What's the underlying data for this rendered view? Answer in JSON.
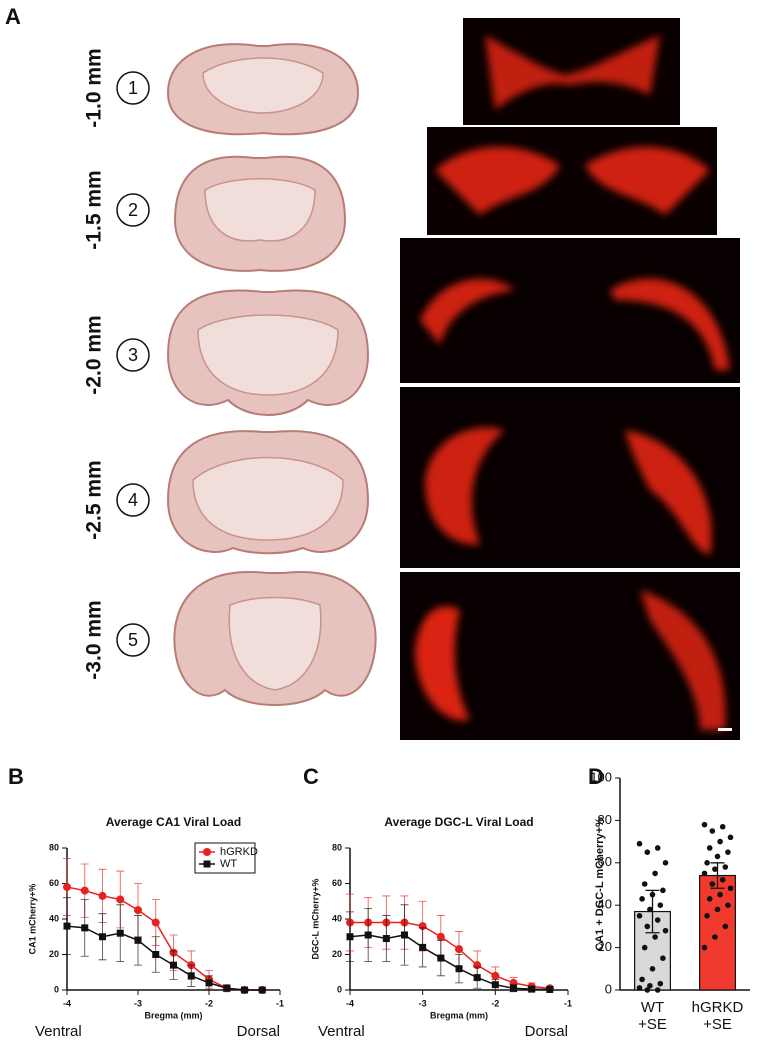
{
  "panel_labels": [
    "A",
    "B",
    "C",
    "D"
  ],
  "sections": [
    {
      "number": "1",
      "depth": "-1.0 mm"
    },
    {
      "number": "2",
      "depth": "-1.5 mm"
    },
    {
      "number": "3",
      "depth": "-2.0 mm"
    },
    {
      "number": "4",
      "depth": "-2.5 mm"
    },
    {
      "number": "5",
      "depth": "-3.0 mm"
    }
  ],
  "chart_data": [
    {
      "type": "line",
      "title": "Average CA1 Viral Load",
      "x_label": "Bregma (mm)",
      "y_label": "CA1 mCherry+%",
      "annotations": [
        "Ventral",
        "Dorsal"
      ],
      "x": [
        -4,
        -3.75,
        -3.5,
        -3.25,
        -3,
        -2.75,
        -2.5,
        -2.25,
        -2,
        -1.75,
        -1.5,
        -1.25
      ],
      "xlim": [
        -4,
        -1
      ],
      "xticks": [
        -4,
        -3,
        -2,
        -1
      ],
      "ylim": [
        0,
        80
      ],
      "yticks": [
        0,
        20,
        40,
        60,
        80
      ],
      "legend": true,
      "legend_position": "upper right",
      "series": [
        {
          "name": "hGRKD",
          "color": "#e8231f",
          "marker": "circle",
          "values": [
            58,
            56,
            53,
            51,
            45,
            38,
            21,
            14,
            6,
            1,
            0,
            0
          ],
          "errors": [
            16,
            15,
            15,
            16,
            15,
            13,
            10,
            8,
            5,
            2,
            1,
            0.5
          ]
        },
        {
          "name": "WT",
          "color": "#111111",
          "marker": "square",
          "values": [
            36,
            35,
            30,
            32,
            28,
            20,
            14,
            8,
            4,
            1,
            0,
            0
          ],
          "errors": [
            16,
            16,
            13,
            16,
            14,
            10,
            8,
            6,
            4,
            1,
            0.5,
            0.3
          ]
        }
      ]
    },
    {
      "type": "line",
      "title": "Average DGC-L Viral Load",
      "x_label": "Bregma (mm)",
      "y_label": "DGC-L mCherry+%",
      "annotations": [
        "Ventral",
        "Dorsal"
      ],
      "x": [
        -4,
        -3.75,
        -3.5,
        -3.25,
        -3,
        -2.75,
        -2.5,
        -2.25,
        -2,
        -1.75,
        -1.5,
        -1.25
      ],
      "xlim": [
        -4,
        -1
      ],
      "xticks": [
        -4,
        -3,
        -2,
        -1
      ],
      "ylim": [
        0,
        80
      ],
      "yticks": [
        0,
        20,
        40,
        60,
        80
      ],
      "legend": false,
      "series": [
        {
          "name": "hGRKD",
          "color": "#e8231f",
          "marker": "circle",
          "values": [
            38,
            38,
            38,
            38,
            36,
            30,
            23,
            14,
            8,
            4,
            2,
            1
          ],
          "errors": [
            16,
            14,
            15,
            15,
            14,
            12,
            10,
            8,
            5,
            3,
            2,
            1
          ]
        },
        {
          "name": "WT",
          "color": "#111111",
          "marker": "square",
          "values": [
            30,
            31,
            29,
            31,
            24,
            18,
            12,
            7,
            3,
            1,
            0.5,
            0.3
          ],
          "errors": [
            14,
            15,
            13,
            17,
            11,
            10,
            8,
            6,
            3,
            2,
            1,
            0.5
          ]
        }
      ]
    },
    {
      "type": "bar",
      "y_label": "CA1 + DGC-L mCherry+%",
      "categories": [
        "WT +SE",
        "hGRKD +SE"
      ],
      "values": [
        37,
        54
      ],
      "errors": [
        10,
        6
      ],
      "colors": [
        "#d9d9d9",
        "#f03a30"
      ],
      "points": [
        [
          69,
          67,
          65,
          60,
          55,
          50,
          47,
          45,
          43,
          40,
          38,
          35,
          33,
          30,
          28,
          25,
          20,
          15,
          10,
          5,
          3,
          2,
          1,
          0,
          0
        ],
        [
          78,
          77,
          75,
          72,
          70,
          67,
          65,
          63,
          60,
          58,
          57,
          55,
          52,
          50,
          48,
          45,
          43,
          40,
          38,
          35,
          30,
          25,
          20
        ]
      ],
      "ylim": [
        0,
        100
      ],
      "yticks": [
        0,
        20,
        40,
        60,
        80,
        100
      ]
    }
  ]
}
